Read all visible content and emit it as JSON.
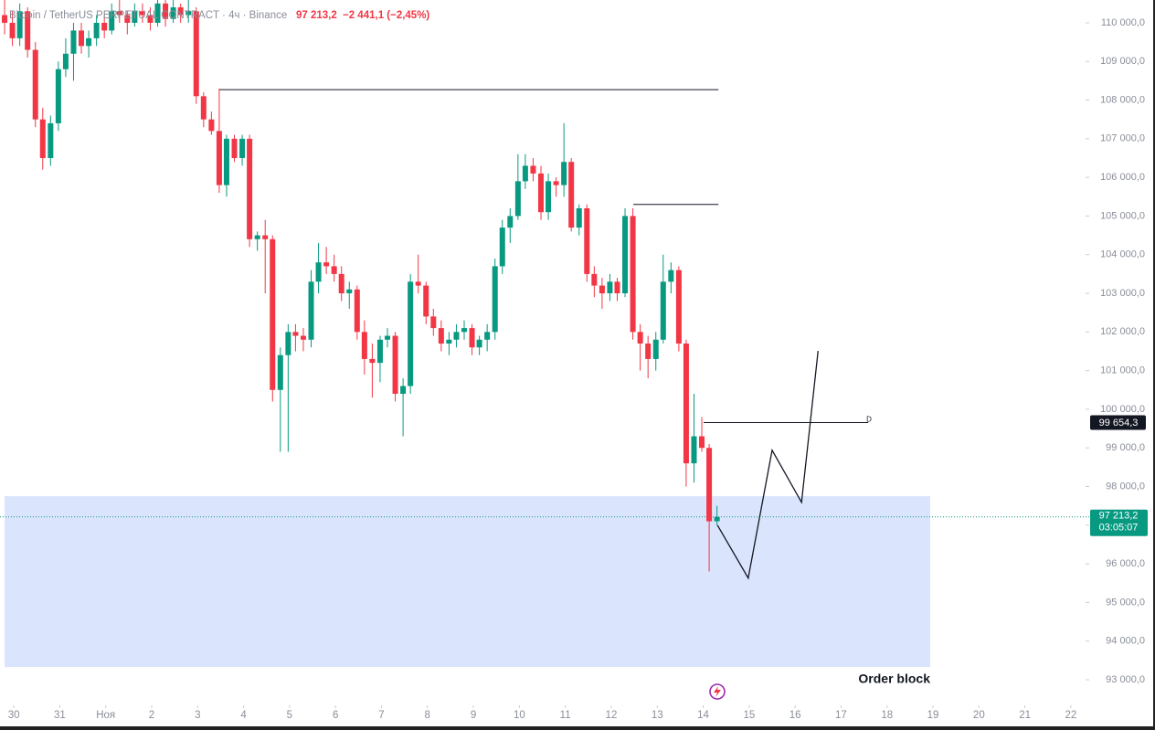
{
  "chart_data": {
    "type": "candlestick",
    "title": "Bitcoin / TetherUS PERPETUAL CONTRACT · 4ч · Binance",
    "header_price": "97 213,2",
    "header_change": "−2 441,1 (−2,45%)",
    "up_color": "#089981",
    "down_color": "#f23645",
    "xlim": [
      -0.3,
      23.26
    ],
    "ylim": [
      92385,
      110590
    ],
    "xticks": [
      {
        "value": 0,
        "label": "30"
      },
      {
        "value": 1,
        "label": "31"
      },
      {
        "value": 2,
        "label": "Ноя"
      },
      {
        "value": 3,
        "label": "2"
      },
      {
        "value": 4,
        "label": "3"
      },
      {
        "value": 5,
        "label": "4"
      },
      {
        "value": 6,
        "label": "5"
      },
      {
        "value": 7,
        "label": "6"
      },
      {
        "value": 8,
        "label": "7"
      },
      {
        "value": 9,
        "label": "8"
      },
      {
        "value": 10,
        "label": "9"
      },
      {
        "value": 11,
        "label": "10"
      },
      {
        "value": 12,
        "label": "11"
      },
      {
        "value": 13,
        "label": "12"
      },
      {
        "value": 14,
        "label": "13"
      },
      {
        "value": 15,
        "label": "14"
      },
      {
        "value": 16,
        "label": "15"
      },
      {
        "value": 17,
        "label": "16"
      },
      {
        "value": 18,
        "label": "17"
      },
      {
        "value": 19,
        "label": "18"
      },
      {
        "value": 20,
        "label": "19"
      },
      {
        "value": 21,
        "label": "20"
      },
      {
        "value": 22,
        "label": "21"
      },
      {
        "value": 23,
        "label": "22"
      }
    ],
    "yticks": [
      {
        "value": 93000,
        "label": "93 000,0"
      },
      {
        "value": 94000,
        "label": "94 000,0"
      },
      {
        "value": 95000,
        "label": "95 000,0"
      },
      {
        "value": 96000,
        "label": "96 000,0"
      },
      {
        "value": 97000,
        "label": "97 000,0"
      },
      {
        "value": 98000,
        "label": "98 000,0"
      },
      {
        "value": 99000,
        "label": "99 000,0"
      },
      {
        "value": 100000,
        "label": "100 000,0"
      },
      {
        "value": 101000,
        "label": "101 000,0"
      },
      {
        "value": 102000,
        "label": "102 000,0"
      },
      {
        "value": 103000,
        "label": "103 000,0"
      },
      {
        "value": 104000,
        "label": "104 000,0"
      },
      {
        "value": 105000,
        "label": "105 000,0"
      },
      {
        "value": 106000,
        "label": "106 000,0"
      },
      {
        "value": 107000,
        "label": "107 000,0"
      },
      {
        "value": 108000,
        "label": "108 000,0"
      },
      {
        "value": 109000,
        "label": "109 000,0"
      },
      {
        "value": 110000,
        "label": "110 000,0"
      }
    ],
    "x": [
      -0.2,
      -0.03,
      0.13,
      0.3,
      0.47,
      0.63,
      0.8,
      0.97,
      1.13,
      1.3,
      1.47,
      1.63,
      1.8,
      1.97,
      2.13,
      2.3,
      2.47,
      2.63,
      2.8,
      2.97,
      3.13,
      3.3,
      3.47,
      3.63,
      3.8,
      3.97,
      4.13,
      4.3,
      4.47,
      4.63,
      4.8,
      4.97,
      5.13,
      5.3,
      5.47,
      5.63,
      5.8,
      5.97,
      6.13,
      6.3,
      6.47,
      6.63,
      6.8,
      6.97,
      7.13,
      7.3,
      7.47,
      7.63,
      7.8,
      7.97,
      8.13,
      8.3,
      8.47,
      8.63,
      8.8,
      8.97,
      9.13,
      9.3,
      9.47,
      9.63,
      9.8,
      9.97,
      10.13,
      10.3,
      10.47,
      10.63,
      10.8,
      10.97,
      11.13,
      11.3,
      11.47,
      11.63,
      11.8,
      11.97,
      12.13,
      12.3,
      12.47,
      12.63,
      12.8,
      12.97,
      13.13,
      13.3,
      13.47,
      13.63,
      13.8,
      13.97,
      14.13,
      14.3,
      14.47,
      14.63,
      14.8,
      14.97,
      15.13,
      15.3
    ],
    "candles": [
      [
        110200,
        110600,
        109700,
        110000
      ],
      [
        110000,
        110300,
        109400,
        109600
      ],
      [
        109600,
        110500,
        109400,
        110300
      ],
      [
        110300,
        110400,
        109100,
        109300
      ],
      [
        109300,
        109500,
        107300,
        107500
      ],
      [
        107500,
        107800,
        106200,
        106500
      ],
      [
        106500,
        107600,
        106300,
        107400
      ],
      [
        107400,
        109000,
        107200,
        108800
      ],
      [
        108800,
        109600,
        108600,
        109200
      ],
      [
        109200,
        110000,
        108500,
        109800
      ],
      [
        109800,
        110000,
        109200,
        109400
      ],
      [
        109400,
        109800,
        109100,
        109600
      ],
      [
        109600,
        110200,
        109400,
        110000
      ],
      [
        110000,
        110200,
        109600,
        109800
      ],
      [
        109800,
        110500,
        109700,
        110300
      ],
      [
        110300,
        110600,
        110000,
        110200
      ],
      [
        110200,
        110300,
        109700,
        110000
      ],
      [
        110000,
        110500,
        109900,
        110300
      ],
      [
        110300,
        110500,
        110000,
        110200
      ],
      [
        110200,
        110400,
        109800,
        110000
      ],
      [
        110000,
        110700,
        109900,
        110500
      ],
      [
        110500,
        110600,
        109900,
        110100
      ],
      [
        110100,
        110600,
        110000,
        110400
      ],
      [
        110400,
        110500,
        110000,
        110200
      ],
      [
        110200,
        110600,
        110000,
        110300
      ],
      [
        110300,
        110400,
        107900,
        108100
      ],
      [
        108100,
        108200,
        107300,
        107500
      ],
      [
        107500,
        107700,
        107100,
        107200
      ],
      [
        107200,
        108300,
        105600,
        105800
      ],
      [
        105800,
        107100,
        105500,
        107000
      ],
      [
        107000,
        107100,
        106400,
        106500
      ],
      [
        106500,
        107100,
        106300,
        107000
      ],
      [
        107000,
        107100,
        104200,
        104400
      ],
      [
        104400,
        104600,
        104100,
        104500
      ],
      [
        104500,
        104900,
        103000,
        104400
      ],
      [
        104400,
        104500,
        100200,
        100500
      ],
      [
        100500,
        101600,
        98900,
        101400
      ],
      [
        101400,
        102200,
        98900,
        102000
      ],
      [
        102000,
        102200,
        101500,
        101900
      ],
      [
        101900,
        102100,
        101500,
        101800
      ],
      [
        101800,
        103600,
        101600,
        103300
      ],
      [
        103300,
        104300,
        103000,
        103800
      ],
      [
        103800,
        104200,
        103500,
        103700
      ],
      [
        103700,
        104000,
        103300,
        103500
      ],
      [
        103500,
        103700,
        102800,
        103000
      ],
      [
        103000,
        103300,
        102600,
        103100
      ],
      [
        103100,
        103200,
        101800,
        102000
      ],
      [
        102000,
        102300,
        100900,
        101300
      ],
      [
        101300,
        101700,
        100300,
        101200
      ],
      [
        101200,
        101900,
        100700,
        101800
      ],
      [
        101800,
        102100,
        101600,
        101900
      ],
      [
        101900,
        102000,
        100200,
        100400
      ],
      [
        100400,
        100800,
        99300,
        100600
      ],
      [
        100600,
        103500,
        100400,
        103300
      ],
      [
        103300,
        104000,
        103000,
        103200
      ],
      [
        103200,
        103300,
        102200,
        102400
      ],
      [
        102400,
        102600,
        101900,
        102100
      ],
      [
        102100,
        102300,
        101500,
        101700
      ],
      [
        101700,
        102000,
        101400,
        101800
      ],
      [
        101800,
        102200,
        101600,
        102000
      ],
      [
        102000,
        102300,
        101800,
        102100
      ],
      [
        102100,
        102200,
        101400,
        101600
      ],
      [
        101600,
        101900,
        101400,
        101800
      ],
      [
        101800,
        102200,
        101500,
        102000
      ],
      [
        102000,
        103900,
        101800,
        103700
      ],
      [
        103700,
        104900,
        103500,
        104700
      ],
      [
        104700,
        105200,
        104300,
        105000
      ],
      [
        105000,
        106600,
        104900,
        105900
      ],
      [
        105900,
        106600,
        105700,
        106300
      ],
      [
        106300,
        106500,
        105900,
        106100
      ],
      [
        106100,
        106300,
        104900,
        105100
      ],
      [
        105100,
        106100,
        104900,
        105900
      ],
      [
        105900,
        106000,
        105500,
        105800
      ],
      [
        105800,
        107400,
        105500,
        106400
      ],
      [
        106400,
        106500,
        104600,
        104700
      ],
      [
        104700,
        105300,
        104500,
        105200
      ],
      [
        105200,
        105300,
        103300,
        103500
      ],
      [
        103500,
        103700,
        102900,
        103200
      ],
      [
        103200,
        103400,
        102600,
        103000
      ],
      [
        103000,
        103500,
        102800,
        103300
      ],
      [
        103300,
        103400,
        102800,
        103000
      ],
      [
        103000,
        105200,
        102900,
        105000
      ],
      [
        105000,
        105200,
        101800,
        102000
      ],
      [
        102000,
        102200,
        101000,
        101700
      ],
      [
        101700,
        101900,
        100800,
        101300
      ],
      [
        101300,
        102000,
        101000,
        101800
      ],
      [
        101800,
        104000,
        101700,
        103300
      ],
      [
        103300,
        103800,
        103000,
        103600
      ],
      [
        103600,
        103700,
        101500,
        101700
      ],
      [
        101700,
        101800,
        98000,
        98600
      ],
      [
        98600,
        100400,
        98100,
        99300
      ],
      [
        99300,
        99800,
        98900,
        99000
      ],
      [
        99000,
        99100,
        95800,
        97100
      ],
      [
        97100,
        97500,
        97000,
        97213.2
      ]
    ],
    "zone": {
      "from": 93330,
      "to": 97750,
      "x": [
        -0.2,
        19.94
      ],
      "label": "Order block",
      "color": "#dbe4fd"
    },
    "levels": [
      {
        "value": 108270,
        "x": [
          4.47,
          15.33
        ]
      },
      {
        "value": 105300,
        "x": [
          13.48,
          15.33
        ]
      },
      {
        "value": 99654.3,
        "x": [
          15.01,
          18.59
        ],
        "tag": "D",
        "label": "99 654,3"
      }
    ],
    "projection": {
      "x": [
        15.31,
        15.98,
        16.5,
        17.14,
        17.5
      ],
      "y": [
        97000,
        95630,
        98940,
        97590,
        101510
      ]
    },
    "last_price": {
      "value": 97213.2,
      "label": "97 213,2",
      "countdown": "03:05:07"
    }
  }
}
